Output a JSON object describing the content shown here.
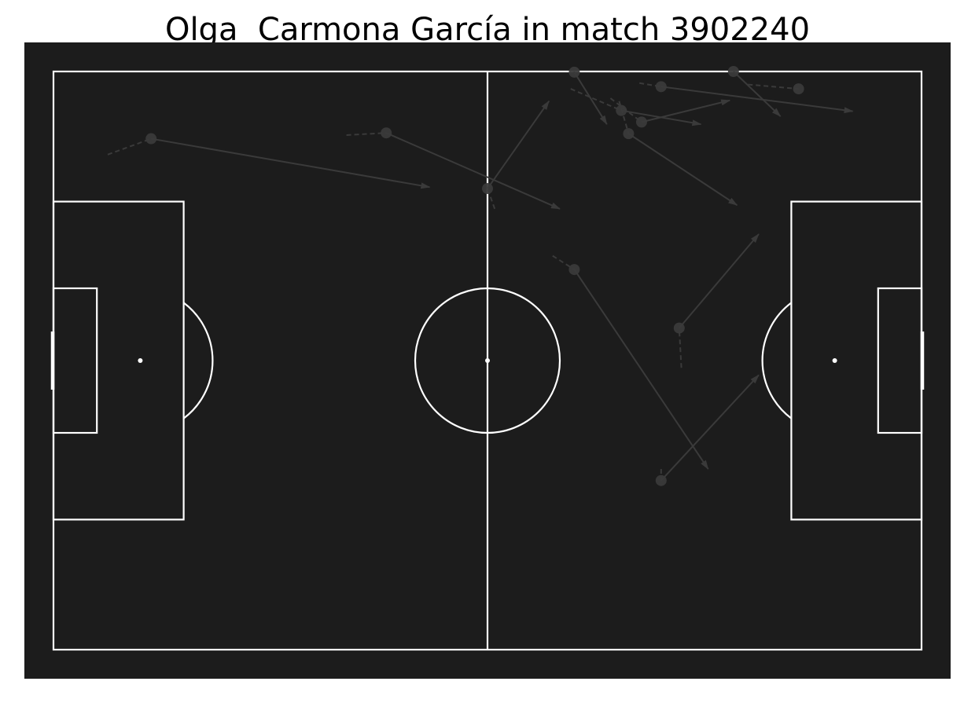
{
  "title": "Olga  Carmona García in match 3902240",
  "colors": {
    "page_background": "#ffffff",
    "pitch_background": "#1c1c1c",
    "pitch_lines": "#ffffff",
    "pass_color": "#3a3a3a",
    "title_color": "#000000"
  },
  "chart_data": {
    "type": "scatter",
    "description_kind": "pass map on a football pitch",
    "pitch": {
      "length": 120,
      "width": 80,
      "type": "statsbomb"
    },
    "passes": [
      {
        "start": [
          13.5,
          9.3
        ],
        "end": [
          52.0,
          16.0
        ],
        "prev": [
          7.5,
          11.5
        ]
      },
      {
        "start": [
          46.0,
          8.5
        ],
        "end": [
          70.0,
          19.0
        ],
        "prev": [
          40.5,
          8.8
        ]
      },
      {
        "start": [
          60.0,
          16.2
        ],
        "end": [
          68.5,
          4.1
        ],
        "prev": [
          61.0,
          19.0
        ]
      },
      {
        "start": [
          72.0,
          0.1
        ],
        "end": [
          76.5,
          7.3
        ],
        "prev": [
          72.0,
          0.0
        ]
      },
      {
        "start": [
          78.5,
          5.4
        ],
        "end": [
          89.5,
          7.3
        ],
        "prev": [
          71.5,
          2.4
        ]
      },
      {
        "start": [
          81.3,
          7.0
        ],
        "end": [
          93.5,
          4.0
        ],
        "prev": [
          77.0,
          3.7
        ]
      },
      {
        "start": [
          79.5,
          8.6
        ],
        "end": [
          94.5,
          18.5
        ],
        "prev": [
          78.2,
          4.1
        ]
      },
      {
        "start": [
          84.0,
          2.1
        ],
        "end": [
          110.5,
          5.5
        ],
        "prev": [
          81.0,
          1.6
        ]
      },
      {
        "start": [
          94.0,
          0.0
        ],
        "end": [
          100.5,
          6.2
        ],
        "prev": [
          94.0,
          0.0
        ]
      },
      {
        "start": [
          103.0,
          2.4
        ],
        "end": [
          103.0,
          2.4
        ],
        "prev": [
          96.0,
          1.8
        ]
      },
      {
        "start": [
          72.0,
          27.4
        ],
        "end": [
          90.5,
          55.0
        ],
        "prev": [
          69.0,
          25.5
        ]
      },
      {
        "start": [
          86.5,
          35.5
        ],
        "end": [
          97.5,
          22.5
        ],
        "prev": [
          86.8,
          41.0
        ]
      },
      {
        "start": [
          84.0,
          56.6
        ],
        "end": [
          97.5,
          42.0
        ],
        "prev": [
          84.0,
          55.0
        ]
      }
    ]
  }
}
